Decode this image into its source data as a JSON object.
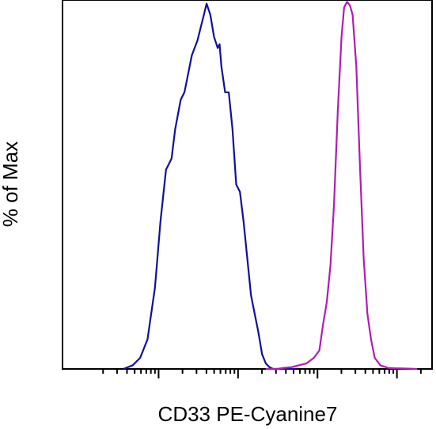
{
  "chart_data": {
    "type": "line",
    "title": "",
    "xlabel": "CD33 PE-Cyanine7",
    "ylabel": "% of Max",
    "x_scale": "log",
    "xlim": [
      0,
      100
    ],
    "ylim": [
      0,
      100
    ],
    "grid": false,
    "legend": "none",
    "x_ticks": [
      {
        "value": 26,
        "major": true
      },
      {
        "value": 47.5,
        "major": true
      },
      {
        "value": 69,
        "major": true
      },
      {
        "value": 90.5,
        "major": true
      }
    ],
    "series": [
      {
        "color": "#10109a",
        "x": [
          16.5,
          19,
          21,
          23,
          25,
          26.5,
          28,
          29.5,
          30.5,
          32,
          33,
          34,
          35,
          36.5,
          38,
          39,
          40,
          41,
          42,
          42.5,
          43,
          44,
          45,
          46,
          47,
          48,
          49,
          50,
          51,
          52,
          53,
          54,
          55,
          56,
          57,
          58,
          59,
          60,
          61,
          62,
          63
        ],
        "y": [
          0,
          1,
          3,
          8,
          22,
          40,
          54,
          57,
          65,
          73,
          75,
          80,
          85,
          89,
          95,
          99,
          96,
          90,
          87,
          88,
          82,
          75,
          75,
          65,
          50,
          48,
          40,
          30,
          20,
          15,
          10,
          4,
          1.5,
          0.5,
          0,
          0,
          0,
          0,
          0,
          0,
          0
        ]
      },
      {
        "color": "#b01cb0",
        "x": [
          55,
          58,
          60,
          62,
          64,
          66,
          68,
          69.5,
          70.5,
          71.5,
          72.5,
          73.5,
          74.5,
          75.5,
          76.2,
          77,
          77.8,
          78.5,
          79.5,
          80.5,
          81.5,
          82.5,
          83.5,
          84.5,
          86,
          88,
          90,
          93,
          96
        ],
        "y": [
          0,
          0,
          0.3,
          0.5,
          1,
          1.5,
          3,
          5,
          12,
          18,
          28,
          45,
          70,
          90,
          98,
          99.5,
          98.5,
          96,
          82,
          55,
          30,
          15,
          8,
          3,
          1,
          0.3,
          0.2,
          0.1,
          0
        ]
      }
    ]
  }
}
